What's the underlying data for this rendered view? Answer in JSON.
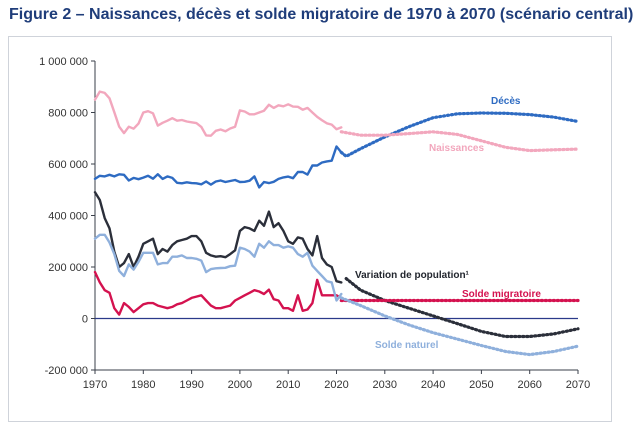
{
  "figure": {
    "title": "Figure 2 – Naissances, décès et solde migratoire de 1970 à 2070 (scénario central)"
  },
  "chart_data": {
    "type": "line",
    "title": "Figure 2 – Naissances, décès et solde migratoire de 1970 à 2070 (scénario central)",
    "xlabel": "",
    "ylabel": "",
    "xlim": [
      1970,
      2070
    ],
    "ylim": [
      -200000,
      1000000
    ],
    "x_ticks": [
      1970,
      1980,
      1990,
      2000,
      2010,
      2020,
      2030,
      2040,
      2050,
      2060,
      2070
    ],
    "x_tick_labels": [
      "1970",
      "1980",
      "1990",
      "2000",
      "2010",
      "2020",
      "2030",
      "2040",
      "2050",
      "2060",
      "2070"
    ],
    "y_ticks": [
      -200000,
      0,
      200000,
      400000,
      600000,
      800000,
      1000000
    ],
    "y_tick_labels": [
      "-200 000",
      "0",
      "200 000",
      "400 000",
      "600 000",
      "800 000",
      "1 000 000"
    ],
    "grid": false,
    "legend": "inline labels",
    "projection_style": "dotted after 2021",
    "series": [
      {
        "name": "Décès",
        "color": "#2e6bc2",
        "observed_x": [
          1970,
          1971,
          1972,
          1973,
          1974,
          1975,
          1976,
          1977,
          1978,
          1979,
          1980,
          1981,
          1982,
          1983,
          1984,
          1985,
          1986,
          1987,
          1988,
          1989,
          1990,
          1991,
          1992,
          1993,
          1994,
          1995,
          1996,
          1997,
          1998,
          1999,
          2000,
          2001,
          2002,
          2003,
          2004,
          2005,
          2006,
          2007,
          2008,
          2009,
          2010,
          2011,
          2012,
          2013,
          2014,
          2015,
          2016,
          2017,
          2018,
          2019,
          2020,
          2021
        ],
        "observed_y": [
          542000,
          554000,
          552000,
          558000,
          552000,
          560000,
          558000,
          536000,
          546000,
          541000,
          547000,
          554000,
          543000,
          560000,
          542000,
          552000,
          546000,
          527000,
          525000,
          529000,
          526000,
          525000,
          521000,
          532000,
          520000,
          532000,
          536000,
          530000,
          534000,
          538000,
          530000,
          531000,
          535000,
          552000,
          509000,
          530000,
          526000,
          531000,
          542000,
          548000,
          551000,
          545000,
          569000,
          569000,
          559000,
          594000,
          594000,
          606000,
          610000,
          613000,
          668000,
          645000
        ],
        "projection_x": [
          2021,
          2022,
          2025,
          2030,
          2035,
          2040,
          2045,
          2050,
          2055,
          2060,
          2065,
          2070
        ],
        "projection_y": [
          645000,
          630000,
          660000,
          705000,
          745000,
          780000,
          795000,
          798000,
          797000,
          792000,
          782000,
          765000
        ],
        "label": "Décès"
      },
      {
        "name": "Naissances",
        "color": "#f2a7bd",
        "observed_x": [
          1970,
          1971,
          1972,
          1973,
          1974,
          1975,
          1976,
          1977,
          1978,
          1979,
          1980,
          1981,
          1982,
          1983,
          1984,
          1985,
          1986,
          1987,
          1988,
          1989,
          1990,
          1991,
          1992,
          1993,
          1994,
          1995,
          1996,
          1997,
          1998,
          1999,
          2000,
          2001,
          2002,
          2003,
          2004,
          2005,
          2006,
          2007,
          2008,
          2009,
          2010,
          2011,
          2012,
          2013,
          2014,
          2015,
          2016,
          2017,
          2018,
          2019,
          2020,
          2021
        ],
        "observed_y": [
          850000,
          881000,
          876000,
          855000,
          801000,
          745000,
          720000,
          745000,
          737000,
          757000,
          800000,
          805000,
          797000,
          749000,
          760000,
          768000,
          778000,
          768000,
          771000,
          765000,
          762000,
          759000,
          744000,
          711000,
          710000,
          729000,
          734000,
          727000,
          738000,
          745000,
          808000,
          804000,
          793000,
          793000,
          800000,
          807000,
          830000,
          818000,
          828000,
          824000,
          832000,
          823000,
          822000,
          811000,
          818000,
          800000,
          783000,
          770000,
          758000,
          753000,
          735000,
          742000
        ],
        "projection_x": [
          2021,
          2025,
          2030,
          2035,
          2040,
          2045,
          2050,
          2055,
          2060,
          2065,
          2070
        ],
        "projection_y": [
          725000,
          712000,
          712000,
          718000,
          725000,
          715000,
          690000,
          665000,
          652000,
          655000,
          658000
        ],
        "label": "Naissances"
      },
      {
        "name": "Variation de population",
        "color": "#2b2f3a",
        "observed_x": [
          1970,
          1971,
          1972,
          1973,
          1974,
          1975,
          1976,
          1977,
          1978,
          1979,
          1980,
          1981,
          1982,
          1983,
          1984,
          1985,
          1986,
          1987,
          1988,
          1989,
          1990,
          1991,
          1992,
          1993,
          1994,
          1995,
          1996,
          1997,
          1998,
          1999,
          2000,
          2001,
          2002,
          2003,
          2004,
          2005,
          2006,
          2007,
          2008,
          2009,
          2010,
          2011,
          2012,
          2013,
          2014,
          2015,
          2016,
          2017,
          2018,
          2019,
          2020,
          2021
        ],
        "observed_y": [
          490000,
          460000,
          390000,
          350000,
          260000,
          200000,
          215000,
          250000,
          200000,
          240000,
          290000,
          300000,
          310000,
          250000,
          270000,
          260000,
          285000,
          300000,
          305000,
          310000,
          320000,
          320000,
          300000,
          255000,
          245000,
          240000,
          242000,
          238000,
          250000,
          265000,
          340000,
          355000,
          350000,
          340000,
          380000,
          360000,
          415000,
          355000,
          370000,
          340000,
          300000,
          290000,
          315000,
          310000,
          270000,
          245000,
          320000,
          235000,
          210000,
          200000,
          145000,
          140000
        ],
        "projection_x": [
          2022,
          2025,
          2030,
          2035,
          2040,
          2045,
          2050,
          2055,
          2060,
          2065,
          2070
        ],
        "projection_y": [
          155000,
          110000,
          70000,
          40000,
          10000,
          -20000,
          -50000,
          -70000,
          -70000,
          -60000,
          -40000
        ],
        "label": "Variation de population¹"
      },
      {
        "name": "Solde migratoire",
        "color": "#d4124f",
        "observed_x": [
          1970,
          1971,
          1972,
          1973,
          1974,
          1975,
          1976,
          1977,
          1978,
          1979,
          1980,
          1981,
          1982,
          1983,
          1984,
          1985,
          1986,
          1987,
          1988,
          1989,
          1990,
          1991,
          1992,
          1993,
          1994,
          1995,
          1996,
          1997,
          1998,
          1999,
          2000,
          2001,
          2002,
          2003,
          2004,
          2005,
          2006,
          2007,
          2008,
          2009,
          2010,
          2011,
          2012,
          2013,
          2014,
          2015,
          2016,
          2017,
          2018,
          2019,
          2020,
          2021
        ],
        "observed_y": [
          180000,
          140000,
          110000,
          100000,
          40000,
          15000,
          60000,
          45000,
          25000,
          40000,
          55000,
          60000,
          60000,
          50000,
          45000,
          40000,
          45000,
          55000,
          60000,
          70000,
          80000,
          85000,
          90000,
          70000,
          50000,
          40000,
          40000,
          45000,
          50000,
          70000,
          80000,
          90000,
          100000,
          110000,
          105000,
          95000,
          112000,
          75000,
          70000,
          40000,
          40000,
          30000,
          90000,
          30000,
          35000,
          60000,
          150000,
          90000,
          90000,
          90000,
          90000,
          80000
        ],
        "projection_x": [
          2021,
          2030,
          2040,
          2050,
          2060,
          2070
        ],
        "projection_y": [
          70000,
          70000,
          70000,
          70000,
          70000,
          70000
        ],
        "label": "Solde migratoire"
      },
      {
        "name": "Solde naturel",
        "color": "#8fb0dc",
        "observed_x": [
          1970,
          1971,
          1972,
          1973,
          1974,
          1975,
          1976,
          1977,
          1978,
          1979,
          1980,
          1981,
          1982,
          1983,
          1984,
          1985,
          1986,
          1987,
          1988,
          1989,
          1990,
          1991,
          1992,
          1993,
          1994,
          1995,
          1996,
          1997,
          1998,
          1999,
          2000,
          2001,
          2002,
          2003,
          2004,
          2005,
          2006,
          2007,
          2008,
          2009,
          2010,
          2011,
          2012,
          2013,
          2014,
          2015,
          2016,
          2017,
          2018,
          2019,
          2020,
          2021
        ],
        "observed_y": [
          310000,
          325000,
          325000,
          295000,
          250000,
          185000,
          165000,
          210000,
          190000,
          220000,
          255000,
          255000,
          255000,
          210000,
          215000,
          215000,
          240000,
          240000,
          245000,
          235000,
          235000,
          232000,
          225000,
          180000,
          192000,
          195000,
          196000,
          197000,
          203000,
          205000,
          275000,
          270000,
          260000,
          240000,
          290000,
          275000,
          300000,
          285000,
          285000,
          275000,
          280000,
          275000,
          250000,
          240000,
          255000,
          205000,
          185000,
          165000,
          145000,
          140000,
          70000,
          95000
        ],
        "projection_x": [
          2021,
          2025,
          2030,
          2035,
          2040,
          2045,
          2050,
          2055,
          2060,
          2065,
          2070
        ],
        "projection_y": [
          80000,
          50000,
          10000,
          -25000,
          -55000,
          -80000,
          -105000,
          -128000,
          -140000,
          -128000,
          -107000
        ],
        "label": "Solde naturel"
      }
    ]
  }
}
